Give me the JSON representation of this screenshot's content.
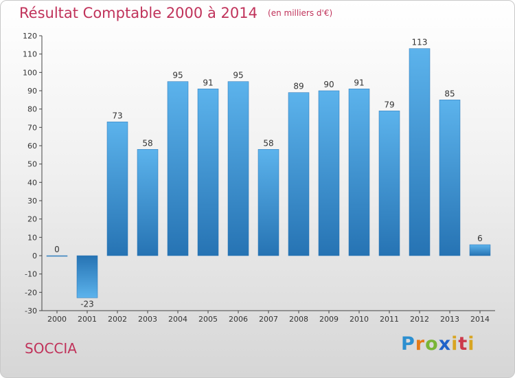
{
  "title": "Résultat Comptable 2000 à 2014",
  "unit_note": "(en milliers d'€)",
  "place": "SOCCIA",
  "logo": {
    "p": "P",
    "r": "r",
    "o": "o",
    "x": "x",
    "i": "i",
    "t": "t",
    "i2": "i"
  },
  "colors": {
    "title": "#c0325a",
    "bar_top": "#5cb3ec",
    "bar_bottom": "#2673b3"
  },
  "chart_data": {
    "type": "bar",
    "title": "Résultat Comptable 2000 à 2014",
    "subtitle": "(en milliers d'€)",
    "categories": [
      "2000",
      "2001",
      "2002",
      "2003",
      "2004",
      "2005",
      "2006",
      "2007",
      "2008",
      "2009",
      "2010",
      "2011",
      "2012",
      "2013",
      "2014"
    ],
    "values": [
      0,
      -23,
      73,
      58,
      95,
      91,
      95,
      58,
      89,
      90,
      91,
      79,
      113,
      85,
      6
    ],
    "value_labels": [
      "0",
      "-23",
      "73",
      "58",
      "95",
      "91",
      "95",
      "58",
      "89",
      "90",
      "91",
      "79",
      "113",
      "85",
      "6"
    ],
    "ylim": [
      -30,
      120
    ],
    "yticks": [
      120,
      110,
      100,
      90,
      80,
      70,
      60,
      50,
      40,
      30,
      20,
      10,
      0,
      -10,
      -20,
      -30
    ],
    "ytick_labels": [
      "120",
      "110",
      "100",
      "90",
      "80",
      "70",
      "60",
      "50",
      "40",
      "30",
      "20",
      "10",
      "0",
      "-10",
      "-20",
      "-30"
    ],
    "grid": false
  }
}
